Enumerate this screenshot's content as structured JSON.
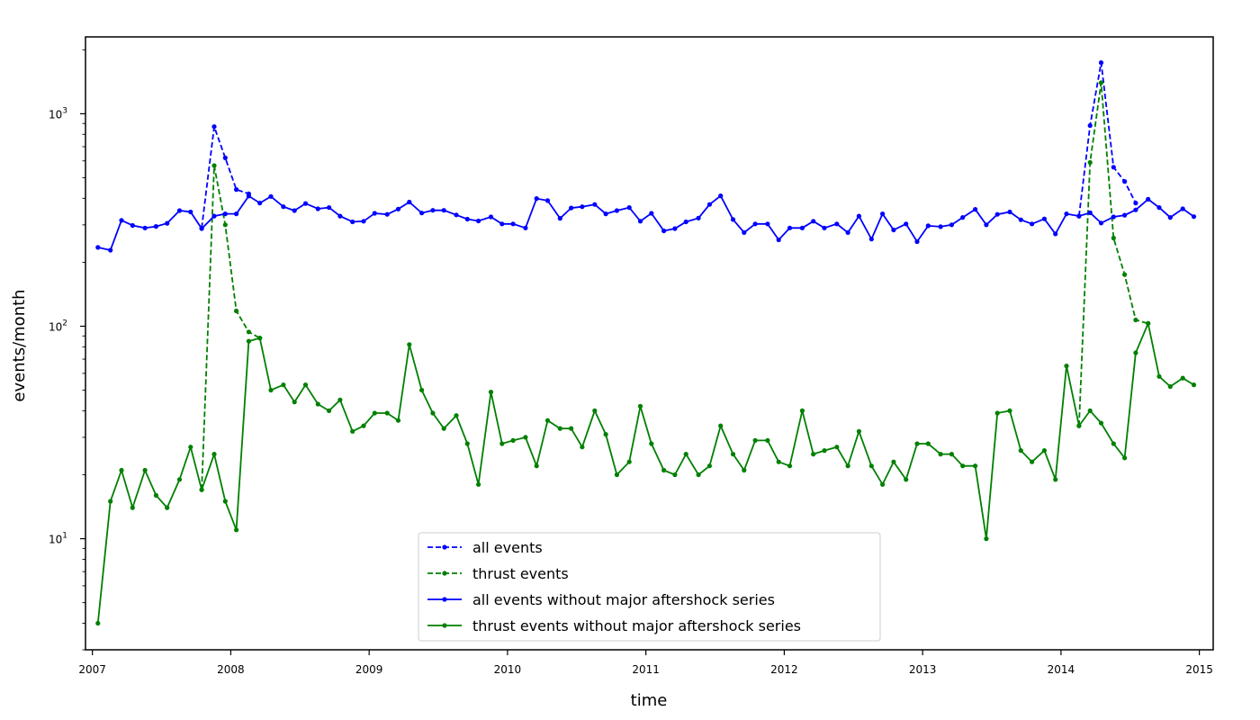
{
  "chart_data": {
    "type": "line",
    "xlabel": "time",
    "ylabel": "events/month",
    "xlim": [
      2006.95,
      2015.1
    ],
    "ylim": [
      3.0,
      2300
    ],
    "yscale": "log",
    "x_ticks": [
      2007,
      2008,
      2009,
      2010,
      2011,
      2012,
      2013,
      2014,
      2015
    ],
    "y_ticks": [
      {
        "value": 10,
        "base": "10",
        "exp": "1"
      },
      {
        "value": 100,
        "base": "10",
        "exp": "2"
      },
      {
        "value": 1000,
        "base": "10",
        "exp": "3"
      }
    ],
    "legend_position": "bottom-center",
    "grid": false,
    "series": [
      {
        "name": "all events",
        "color": "#0000ff",
        "linestyle": "dashed",
        "x": [
          2007.79,
          2007.88,
          2007.96,
          2008.04,
          2008.13
        ],
        "values": [
          290,
          870,
          620,
          440,
          420
        ]
      },
      {
        "name": "all events",
        "color": "#0000ff",
        "linestyle": "dashed",
        "x": [
          2014.13,
          2014.21,
          2014.29,
          2014.38,
          2014.46,
          2014.54
        ],
        "values": [
          330,
          880,
          1740,
          560,
          480,
          380
        ]
      },
      {
        "name": "thrust events",
        "color": "#008000",
        "linestyle": "dashed",
        "x": [
          2007.79,
          2007.88,
          2007.96,
          2008.04,
          2008.13,
          2008.21
        ],
        "values": [
          17,
          570,
          300,
          118,
          94,
          88
        ]
      },
      {
        "name": "thrust events",
        "color": "#008000",
        "linestyle": "dashed",
        "x": [
          2014.13,
          2014.21,
          2014.29,
          2014.38,
          2014.46,
          2014.54,
          2014.63
        ],
        "values": [
          34,
          590,
          1400,
          260,
          175,
          107,
          103
        ]
      },
      {
        "name": "all events without major aftershock series",
        "color": "#0000ff",
        "linestyle": "solid",
        "x": [
          2007.04,
          2007.13,
          2007.21,
          2007.29,
          2007.38,
          2007.46,
          2007.54,
          2007.63,
          2007.71,
          2007.79,
          2007.88,
          2007.96,
          2008.04,
          2008.13,
          2008.21,
          2008.29,
          2008.38,
          2008.46,
          2008.54,
          2008.63,
          2008.71,
          2008.79,
          2008.88,
          2008.96,
          2009.04,
          2009.13,
          2009.21,
          2009.29,
          2009.38,
          2009.46,
          2009.54,
          2009.63,
          2009.71,
          2009.79,
          2009.88,
          2009.96,
          2010.04,
          2010.13,
          2010.21,
          2010.29,
          2010.38,
          2010.46,
          2010.54,
          2010.63,
          2010.71,
          2010.79,
          2010.88,
          2010.96,
          2011.04,
          2011.13,
          2011.21,
          2011.29,
          2011.38,
          2011.46,
          2011.54,
          2011.63,
          2011.71,
          2011.79,
          2011.88,
          2011.96,
          2012.04,
          2012.13,
          2012.21,
          2012.29,
          2012.38,
          2012.46,
          2012.54,
          2012.63,
          2012.71,
          2012.79,
          2012.88,
          2012.96,
          2013.04,
          2013.13,
          2013.21,
          2013.29,
          2013.38,
          2013.46,
          2013.54,
          2013.63,
          2013.71,
          2013.79,
          2013.88,
          2013.96,
          2014.04,
          2014.13,
          2014.21,
          2014.29,
          2014.38,
          2014.46,
          2014.54,
          2014.63,
          2014.71,
          2014.79,
          2014.88,
          2014.96
        ],
        "values": [
          235,
          228,
          315,
          298,
          290,
          295,
          305,
          350,
          345,
          288,
          330,
          338,
          338,
          410,
          380,
          408,
          365,
          350,
          378,
          357,
          362,
          330,
          310,
          312,
          340,
          336,
          356,
          384,
          341,
          351,
          351,
          334,
          319,
          313,
          327,
          303,
          303,
          290,
          399,
          390,
          322,
          360,
          365,
          374,
          338,
          350,
          362,
          312,
          340,
          281,
          288,
          310,
          323,
          374,
          411,
          318,
          276,
          303,
          303,
          255,
          290,
          290,
          312,
          290,
          303,
          276,
          330,
          257,
          338,
          284,
          303,
          250,
          297,
          294,
          300,
          325,
          355,
          300,
          336,
          345,
          317,
          303,
          320,
          272,
          338,
          330,
          342,
          306,
          327,
          333,
          353,
          396,
          362,
          325,
          357,
          328
        ]
      },
      {
        "name": "thrust events without major aftershock series",
        "color": "#008000",
        "linestyle": "solid",
        "x": [
          2007.04,
          2007.13,
          2007.21,
          2007.29,
          2007.38,
          2007.46,
          2007.54,
          2007.63,
          2007.71,
          2007.79,
          2007.88,
          2007.96,
          2008.04,
          2008.13,
          2008.21,
          2008.29,
          2008.38,
          2008.46,
          2008.54,
          2008.63,
          2008.71,
          2008.79,
          2008.88,
          2008.96,
          2009.04,
          2009.13,
          2009.21,
          2009.29,
          2009.38,
          2009.46,
          2009.54,
          2009.63,
          2009.71,
          2009.79,
          2009.88,
          2009.96,
          2010.04,
          2010.13,
          2010.21,
          2010.29,
          2010.38,
          2010.46,
          2010.54,
          2010.63,
          2010.71,
          2010.79,
          2010.88,
          2010.96,
          2011.04,
          2011.13,
          2011.21,
          2011.29,
          2011.38,
          2011.46,
          2011.54,
          2011.63,
          2011.71,
          2011.79,
          2011.88,
          2011.96,
          2012.04,
          2012.13,
          2012.21,
          2012.29,
          2012.38,
          2012.46,
          2012.54,
          2012.63,
          2012.71,
          2012.79,
          2012.88,
          2012.96,
          2013.04,
          2013.13,
          2013.21,
          2013.29,
          2013.38,
          2013.46,
          2013.54,
          2013.63,
          2013.71,
          2013.79,
          2013.88,
          2013.96,
          2014.04,
          2014.13,
          2014.21,
          2014.29,
          2014.38,
          2014.46,
          2014.54,
          2014.63,
          2014.71,
          2014.79,
          2014.88,
          2014.96
        ],
        "values": [
          4,
          15,
          21,
          14,
          21,
          16,
          14,
          19,
          27,
          17,
          25,
          15,
          11,
          85,
          88,
          50,
          53,
          44,
          53,
          43,
          40,
          45,
          32,
          34,
          39,
          39,
          36,
          82,
          50,
          39,
          33,
          38,
          28,
          18,
          49,
          28,
          29,
          30,
          22,
          36,
          33,
          33,
          27,
          40,
          31,
          20,
          23,
          42,
          28,
          21,
          20,
          25,
          20,
          22,
          34,
          25,
          21,
          29,
          29,
          23,
          22,
          40,
          25,
          26,
          27,
          22,
          32,
          22,
          18,
          23,
          19,
          28,
          28,
          25,
          25,
          22,
          22,
          10,
          39,
          40,
          26,
          23,
          26,
          19,
          65,
          34,
          40,
          35,
          28,
          24,
          75,
          103,
          58,
          52,
          57,
          53
        ]
      }
    ],
    "legend": [
      {
        "label": "all events",
        "color": "#0000ff",
        "linestyle": "dashed"
      },
      {
        "label": "thrust events",
        "color": "#008000",
        "linestyle": "dashed"
      },
      {
        "label": "all events without major aftershock series",
        "color": "#0000ff",
        "linestyle": "solid"
      },
      {
        "label": "thrust events without major aftershock series",
        "color": "#008000",
        "linestyle": "solid"
      }
    ]
  }
}
